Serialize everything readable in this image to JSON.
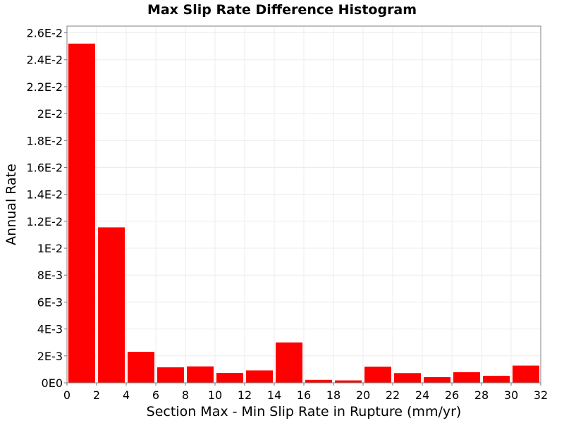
{
  "chart_data": {
    "type": "bar",
    "title": "Max Slip Rate Difference Histogram",
    "xlabel": "Section Max - Min Slip Rate in Rupture (mm/yr)",
    "ylabel": "Annual Rate",
    "xlim": [
      0,
      32
    ],
    "ylim": [
      0,
      0.0265
    ],
    "grid": true,
    "legend": "none",
    "bar_color": "#ff0000",
    "bin_width": 2,
    "x_ticks": [
      0,
      2,
      4,
      6,
      8,
      10,
      12,
      14,
      16,
      18,
      20,
      22,
      24,
      26,
      28,
      30,
      32
    ],
    "x_tick_labels": [
      "0",
      "2",
      "4",
      "6",
      "8",
      "10",
      "12",
      "14",
      "16",
      "18",
      "20",
      "22",
      "24",
      "26",
      "28",
      "30",
      "32"
    ],
    "y_ticks": [
      0,
      0.002,
      0.004,
      0.006,
      0.008,
      0.01,
      0.012,
      0.014,
      0.016,
      0.018,
      0.02,
      0.022,
      0.024,
      0.026
    ],
    "y_tick_labels": [
      "0E0",
      "2E-3",
      "4E-3",
      "6E-3",
      "8E-3",
      "1E-2",
      "1.2E-2",
      "1.4E-2",
      "1.6E-2",
      "1.8E-2",
      "2E-2",
      "2.2E-2",
      "2.4E-2",
      "2.6E-2"
    ],
    "bars": [
      {
        "x": 1,
        "value": 0.0252
      },
      {
        "x": 3,
        "value": 0.01155
      },
      {
        "x": 5,
        "value": 0.0023
      },
      {
        "x": 7,
        "value": 0.00115
      },
      {
        "x": 9,
        "value": 0.00122
      },
      {
        "x": 11,
        "value": 0.00073
      },
      {
        "x": 13,
        "value": 0.00092
      },
      {
        "x": 15,
        "value": 0.003
      },
      {
        "x": 17,
        "value": 0.00022
      },
      {
        "x": 19,
        "value": 0.00018
      },
      {
        "x": 21,
        "value": 0.0012
      },
      {
        "x": 23,
        "value": 0.00072
      },
      {
        "x": 25,
        "value": 0.00042
      },
      {
        "x": 27,
        "value": 0.00079
      },
      {
        "x": 29,
        "value": 0.00052
      },
      {
        "x": 31,
        "value": 0.00128
      }
    ]
  }
}
